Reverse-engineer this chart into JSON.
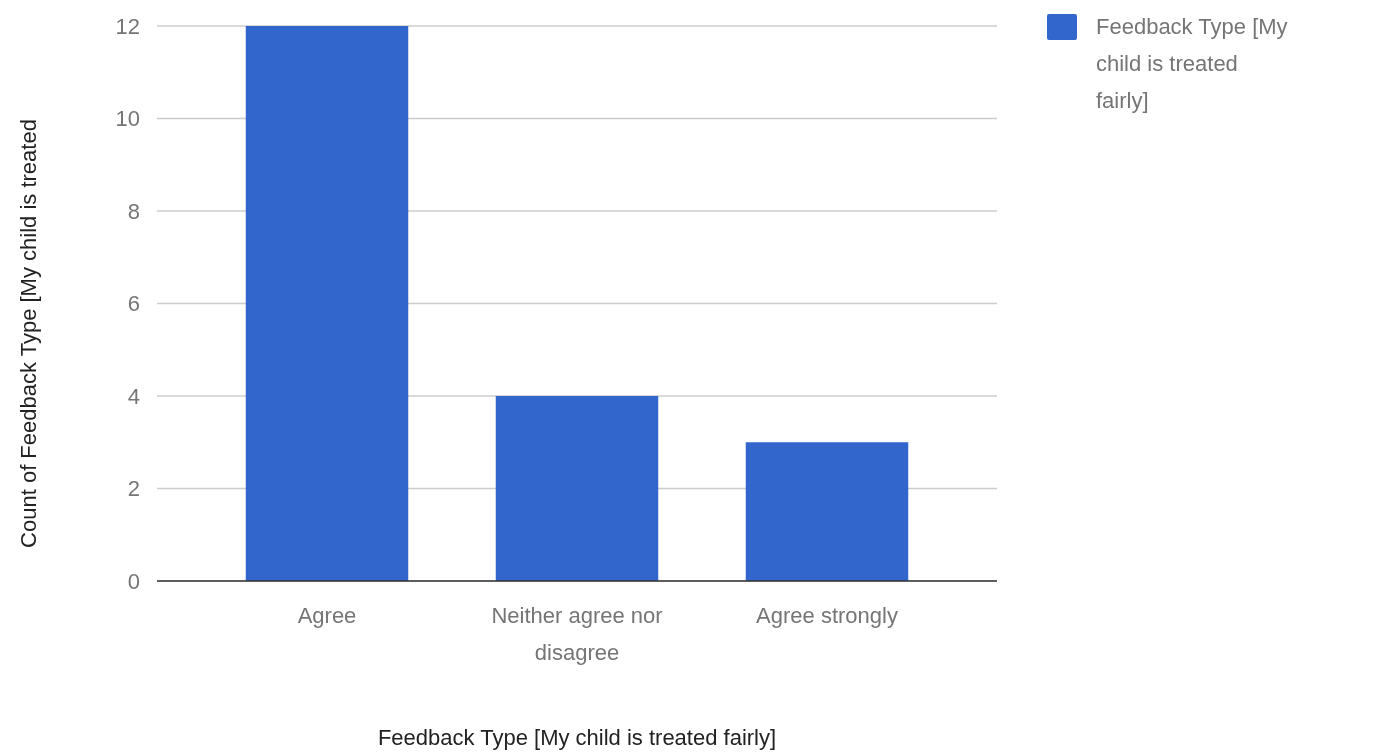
{
  "chart_data": {
    "type": "bar",
    "categories": [
      "Agree",
      "Neither agree nor disagree",
      "Agree strongly"
    ],
    "series": [
      {
        "name": "Feedback Type [My child is treated fairly]",
        "color": "#3366cc",
        "values": [
          12,
          4,
          3
        ]
      }
    ],
    "ylim": [
      0,
      12
    ],
    "yticks": [
      0,
      2,
      4,
      6,
      8,
      10,
      12
    ],
    "grid": "y",
    "legend": "top right",
    "xlabel": "Feedback Type [My child is treated fairly]",
    "ylabel": "Count of Feedback Type [My child is treated"
  }
}
